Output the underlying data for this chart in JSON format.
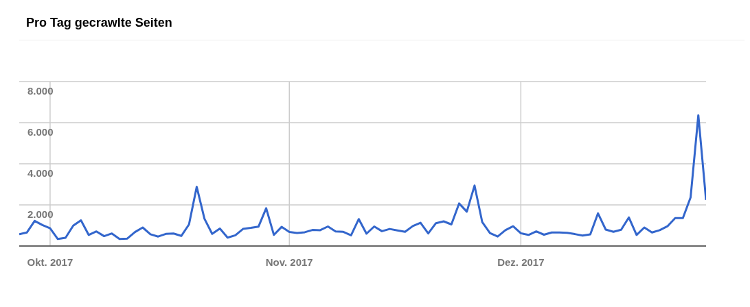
{
  "chart_data": {
    "type": "line",
    "title": "Pro Tag gecrawlte Seiten",
    "x": [
      "2017-09-27",
      "2017-09-28",
      "2017-09-29",
      "2017-09-30",
      "2017-10-01",
      "2017-10-02",
      "2017-10-03",
      "2017-10-04",
      "2017-10-05",
      "2017-10-06",
      "2017-10-07",
      "2017-10-08",
      "2017-10-09",
      "2017-10-10",
      "2017-10-11",
      "2017-10-12",
      "2017-10-13",
      "2017-10-14",
      "2017-10-15",
      "2017-10-16",
      "2017-10-17",
      "2017-10-18",
      "2017-10-19",
      "2017-10-20",
      "2017-10-21",
      "2017-10-22",
      "2017-10-23",
      "2017-10-24",
      "2017-10-25",
      "2017-10-26",
      "2017-10-27",
      "2017-10-28",
      "2017-10-29",
      "2017-10-30",
      "2017-10-31",
      "2017-11-01",
      "2017-11-02",
      "2017-11-03",
      "2017-11-04",
      "2017-11-05",
      "2017-11-06",
      "2017-11-07",
      "2017-11-08",
      "2017-11-09",
      "2017-11-10",
      "2017-11-11",
      "2017-11-12",
      "2017-11-13",
      "2017-11-14",
      "2017-11-15",
      "2017-11-16",
      "2017-11-17",
      "2017-11-18",
      "2017-11-19",
      "2017-11-20",
      "2017-11-21",
      "2017-11-22",
      "2017-11-23",
      "2017-11-24",
      "2017-11-25",
      "2017-11-26",
      "2017-11-27",
      "2017-11-28",
      "2017-11-29",
      "2017-11-30",
      "2017-12-01",
      "2017-12-02",
      "2017-12-03",
      "2017-12-04",
      "2017-12-05",
      "2017-12-06",
      "2017-12-07",
      "2017-12-08",
      "2017-12-09",
      "2017-12-10",
      "2017-12-11",
      "2017-12-12",
      "2017-12-13",
      "2017-12-14",
      "2017-12-15",
      "2017-12-16",
      "2017-12-17",
      "2017-12-18",
      "2017-12-19",
      "2017-12-20",
      "2017-12-21",
      "2017-12-22",
      "2017-12-23",
      "2017-12-24",
      "2017-12-25"
    ],
    "series": [
      {
        "color": "#3366cc",
        "values": [
          570,
          660,
          1220,
          1020,
          860,
          340,
          400,
          990,
          1250,
          540,
          710,
          480,
          610,
          340,
          360,
          680,
          900,
          570,
          460,
          590,
          610,
          490,
          1050,
          2880,
          1330,
          590,
          850,
          410,
          520,
          830,
          880,
          940,
          1840,
          540,
          930,
          680,
          630,
          670,
          780,
          770,
          950,
          710,
          690,
          520,
          1310,
          600,
          950,
          720,
          830,
          760,
          690,
          970,
          1130,
          610,
          1110,
          1200,
          1050,
          2070,
          1670,
          2940,
          1160,
          630,
          460,
          770,
          960,
          620,
          540,
          710,
          550,
          660,
          660,
          640,
          580,
          510,
          570,
          1590,
          800,
          690,
          790,
          1390,
          540,
          900,
          660,
          770,
          960,
          1360,
          1360,
          2370,
          6360,
          2240
        ]
      }
    ],
    "xlim": [
      "2017-09-27",
      "2017-12-25"
    ],
    "xticks": [
      {
        "value": "2017-10-01",
        "label": "Okt. 2017"
      },
      {
        "value": "2017-11-01",
        "label": "Nov. 2017"
      },
      {
        "value": "2017-12-01",
        "label": "Dez. 2017"
      }
    ],
    "ylim": [
      0,
      8000
    ],
    "yticks": [
      {
        "value": 0,
        "label": null
      },
      {
        "value": 2000,
        "label": "2.000"
      },
      {
        "value": 4000,
        "label": "4.000"
      },
      {
        "value": 6000,
        "label": "6.000"
      },
      {
        "value": 8000,
        "label": "8.000"
      }
    ],
    "grid": true
  }
}
